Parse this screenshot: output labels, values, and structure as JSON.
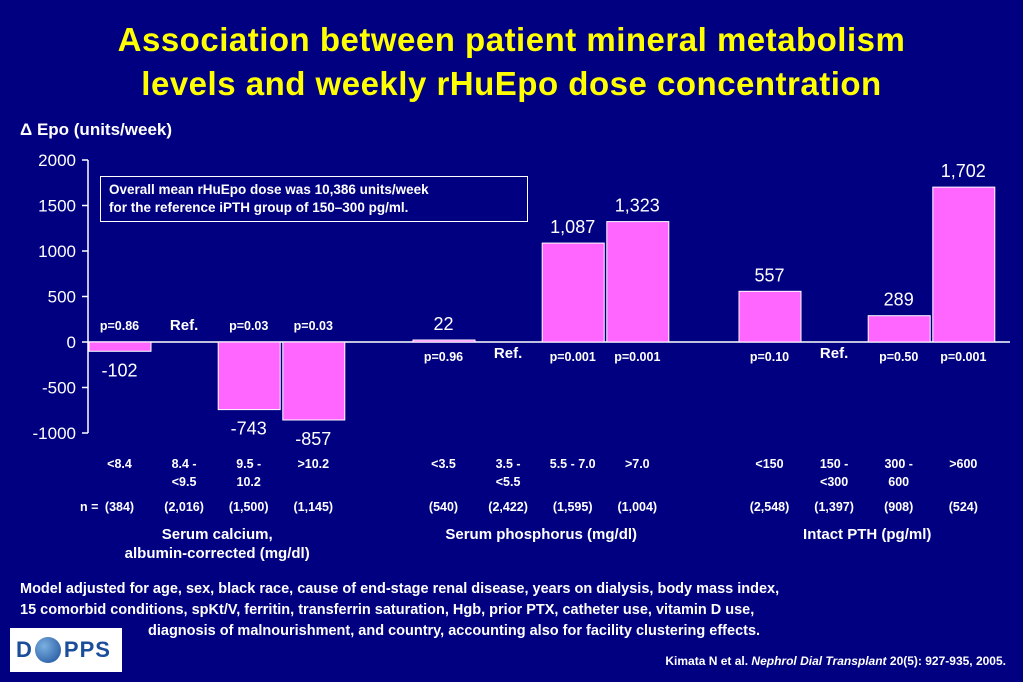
{
  "title_line1": "Association between patient mineral metabolism",
  "title_line2": "levels and weekly rHuEpo dose concentration",
  "note": {
    "line1": "Overall mean rHuEpo dose was 10,386 units/week",
    "line2": "for the reference iPTH group of 150–300 pg/ml."
  },
  "n_label": "n =",
  "footnote": {
    "line1": "Model adjusted for age, sex, black race, cause of end-stage renal disease, years on dialysis, body mass index,",
    "line2": "15 comorbid conditions, spKt/V, ferritin, transferrin saturation, Hgb, prior PTX, catheter use, vitamin D use,",
    "line3": "diagnosis of malnourishment, and country, accounting also for facility clustering effects."
  },
  "citation": {
    "authors": "Kimata N et al.",
    "journal": "Nephrol Dial Transplant",
    "ref": "20(5): 927-935, 2005."
  },
  "logo": {
    "text": "PPS"
  },
  "colors": {
    "background": "#000080",
    "bar": "#ff66ff",
    "title": "#ffff00",
    "text": "#ffffff"
  },
  "chart_data": {
    "type": "bar",
    "ylabel": "Δ Epo (units/week)",
    "ylim": [
      -1000,
      2000
    ],
    "yticks": [
      2000,
      1500,
      1000,
      500,
      0,
      -500,
      -1000
    ],
    "ytick_labels": [
      "2000",
      "1500",
      "1000",
      "500",
      "0",
      "-500",
      "-1000"
    ],
    "groups": [
      {
        "label_lines": [
          "Serum calcium,",
          "albumin-corrected (mg/dl)"
        ],
        "categories": [
          {
            "label": [
              "<8.4"
            ],
            "value": -102,
            "value_label": "-102",
            "p": "p=0.86",
            "n": "(384)"
          },
          {
            "label": [
              "8.4 -",
              "<9.5"
            ],
            "value": 0,
            "value_label": "",
            "p": "Ref.",
            "n": "(2,016)",
            "ref": true
          },
          {
            "label": [
              "9.5 -",
              "10.2"
            ],
            "value": -743,
            "value_label": "-743",
            "p": "p=0.03",
            "n": "(1,500)"
          },
          {
            "label": [
              ">10.2"
            ],
            "value": -857,
            "value_label": "-857",
            "p": "p=0.03",
            "n": "(1,145)"
          }
        ]
      },
      {
        "label_lines": [
          "Serum phosphorus (mg/dl)"
        ],
        "categories": [
          {
            "label": [
              "<3.5"
            ],
            "value": 22,
            "value_label": "22",
            "p": "p=0.96",
            "n": "(540)"
          },
          {
            "label": [
              "3.5 -",
              "<5.5"
            ],
            "value": 0,
            "value_label": "",
            "p": "Ref.",
            "n": "(2,422)",
            "ref": true
          },
          {
            "label": [
              "5.5 - 7.0"
            ],
            "value": 1087,
            "value_label": "1,087",
            "p": "p=0.001",
            "n": "(1,595)"
          },
          {
            "label": [
              ">7.0"
            ],
            "value": 1323,
            "value_label": "1,323",
            "p": "p=0.001",
            "n": "(1,004)"
          }
        ]
      },
      {
        "label_lines": [
          "Intact PTH (pg/ml)"
        ],
        "categories": [
          {
            "label": [
              "<150"
            ],
            "value": 557,
            "value_label": "557",
            "p": "p=0.10",
            "n": "(2,548)"
          },
          {
            "label": [
              "150 -",
              "<300"
            ],
            "value": 0,
            "value_label": "",
            "p": "Ref.",
            "n": "(1,397)",
            "ref": true
          },
          {
            "label": [
              "300 -",
              "600"
            ],
            "value": 289,
            "value_label": "289",
            "p": "p=0.50",
            "n": "(908)"
          },
          {
            "label": [
              ">600"
            ],
            "value": 1702,
            "value_label": "1,702",
            "p": "p=0.001",
            "n": "(524)"
          }
        ]
      }
    ]
  }
}
